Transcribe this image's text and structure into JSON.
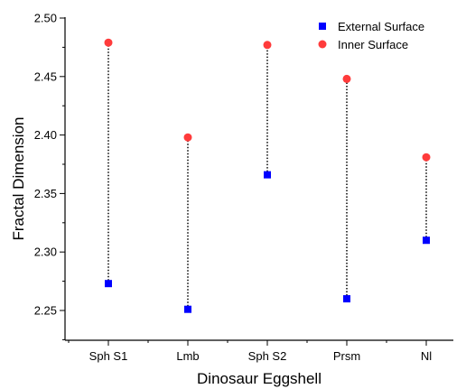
{
  "chart_data": {
    "type": "scatter",
    "categories": [
      "Sph S1",
      "Lmb",
      "Sph S2",
      "Prsm",
      "Nl"
    ],
    "series": [
      {
        "name": "External Surface",
        "marker": "square",
        "color": "#0000ff",
        "values": [
          2.273,
          2.251,
          2.366,
          2.26,
          2.31
        ]
      },
      {
        "name": "Inner Surface",
        "marker": "circle",
        "color": "#ff3b3b",
        "values": [
          2.479,
          2.398,
          2.477,
          2.448,
          2.381
        ]
      }
    ],
    "connectors": "dotted vertical lines between External Surface and Inner Surface values",
    "xlabel": "Dinosaur Eggshell",
    "ylabel": "Fractal Dimension",
    "ylim": [
      2.225,
      2.5
    ],
    "yticks": [
      "2.25",
      "2.30",
      "2.35",
      "2.40",
      "2.45",
      "2.50"
    ],
    "legend": "top-right",
    "grid": false
  }
}
